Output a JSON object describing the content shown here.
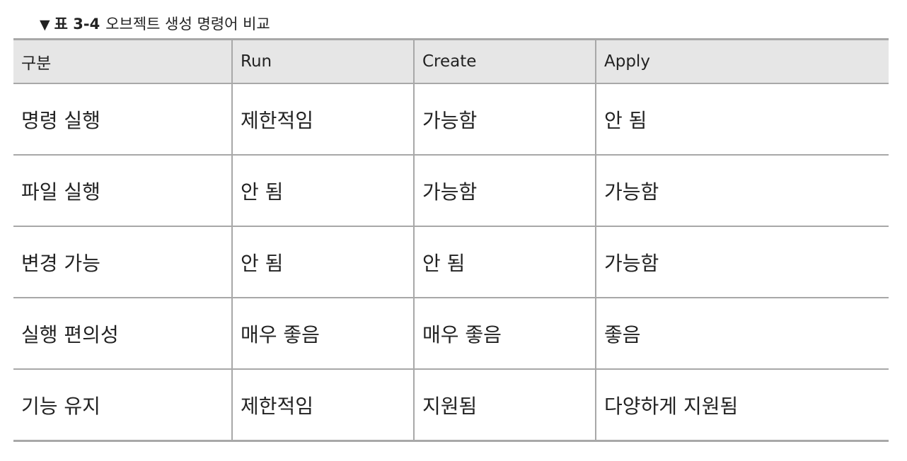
{
  "caption": {
    "marker": "▼",
    "label": "표 3-4",
    "title": "오브젝트 생성 명령어 비교"
  },
  "table": {
    "headers": [
      "구분",
      "Run",
      "Create",
      "Apply"
    ],
    "rows": [
      [
        "명령 실행",
        "제한적임",
        "가능함",
        "안 됨"
      ],
      [
        "파일 실행",
        "안 됨",
        "가능함",
        "가능함"
      ],
      [
        "변경 가능",
        "안 됨",
        "안 됨",
        "가능함"
      ],
      [
        "실행 편의성",
        "매우 좋음",
        "매우 좋음",
        "좋음"
      ],
      [
        "기능 유지",
        "제한적임",
        "지원됨",
        "다양하게 지원됨"
      ]
    ]
  },
  "colors": {
    "header_background": "#e6e6e6",
    "rule": "#a8a8a8",
    "text": "#222222"
  }
}
